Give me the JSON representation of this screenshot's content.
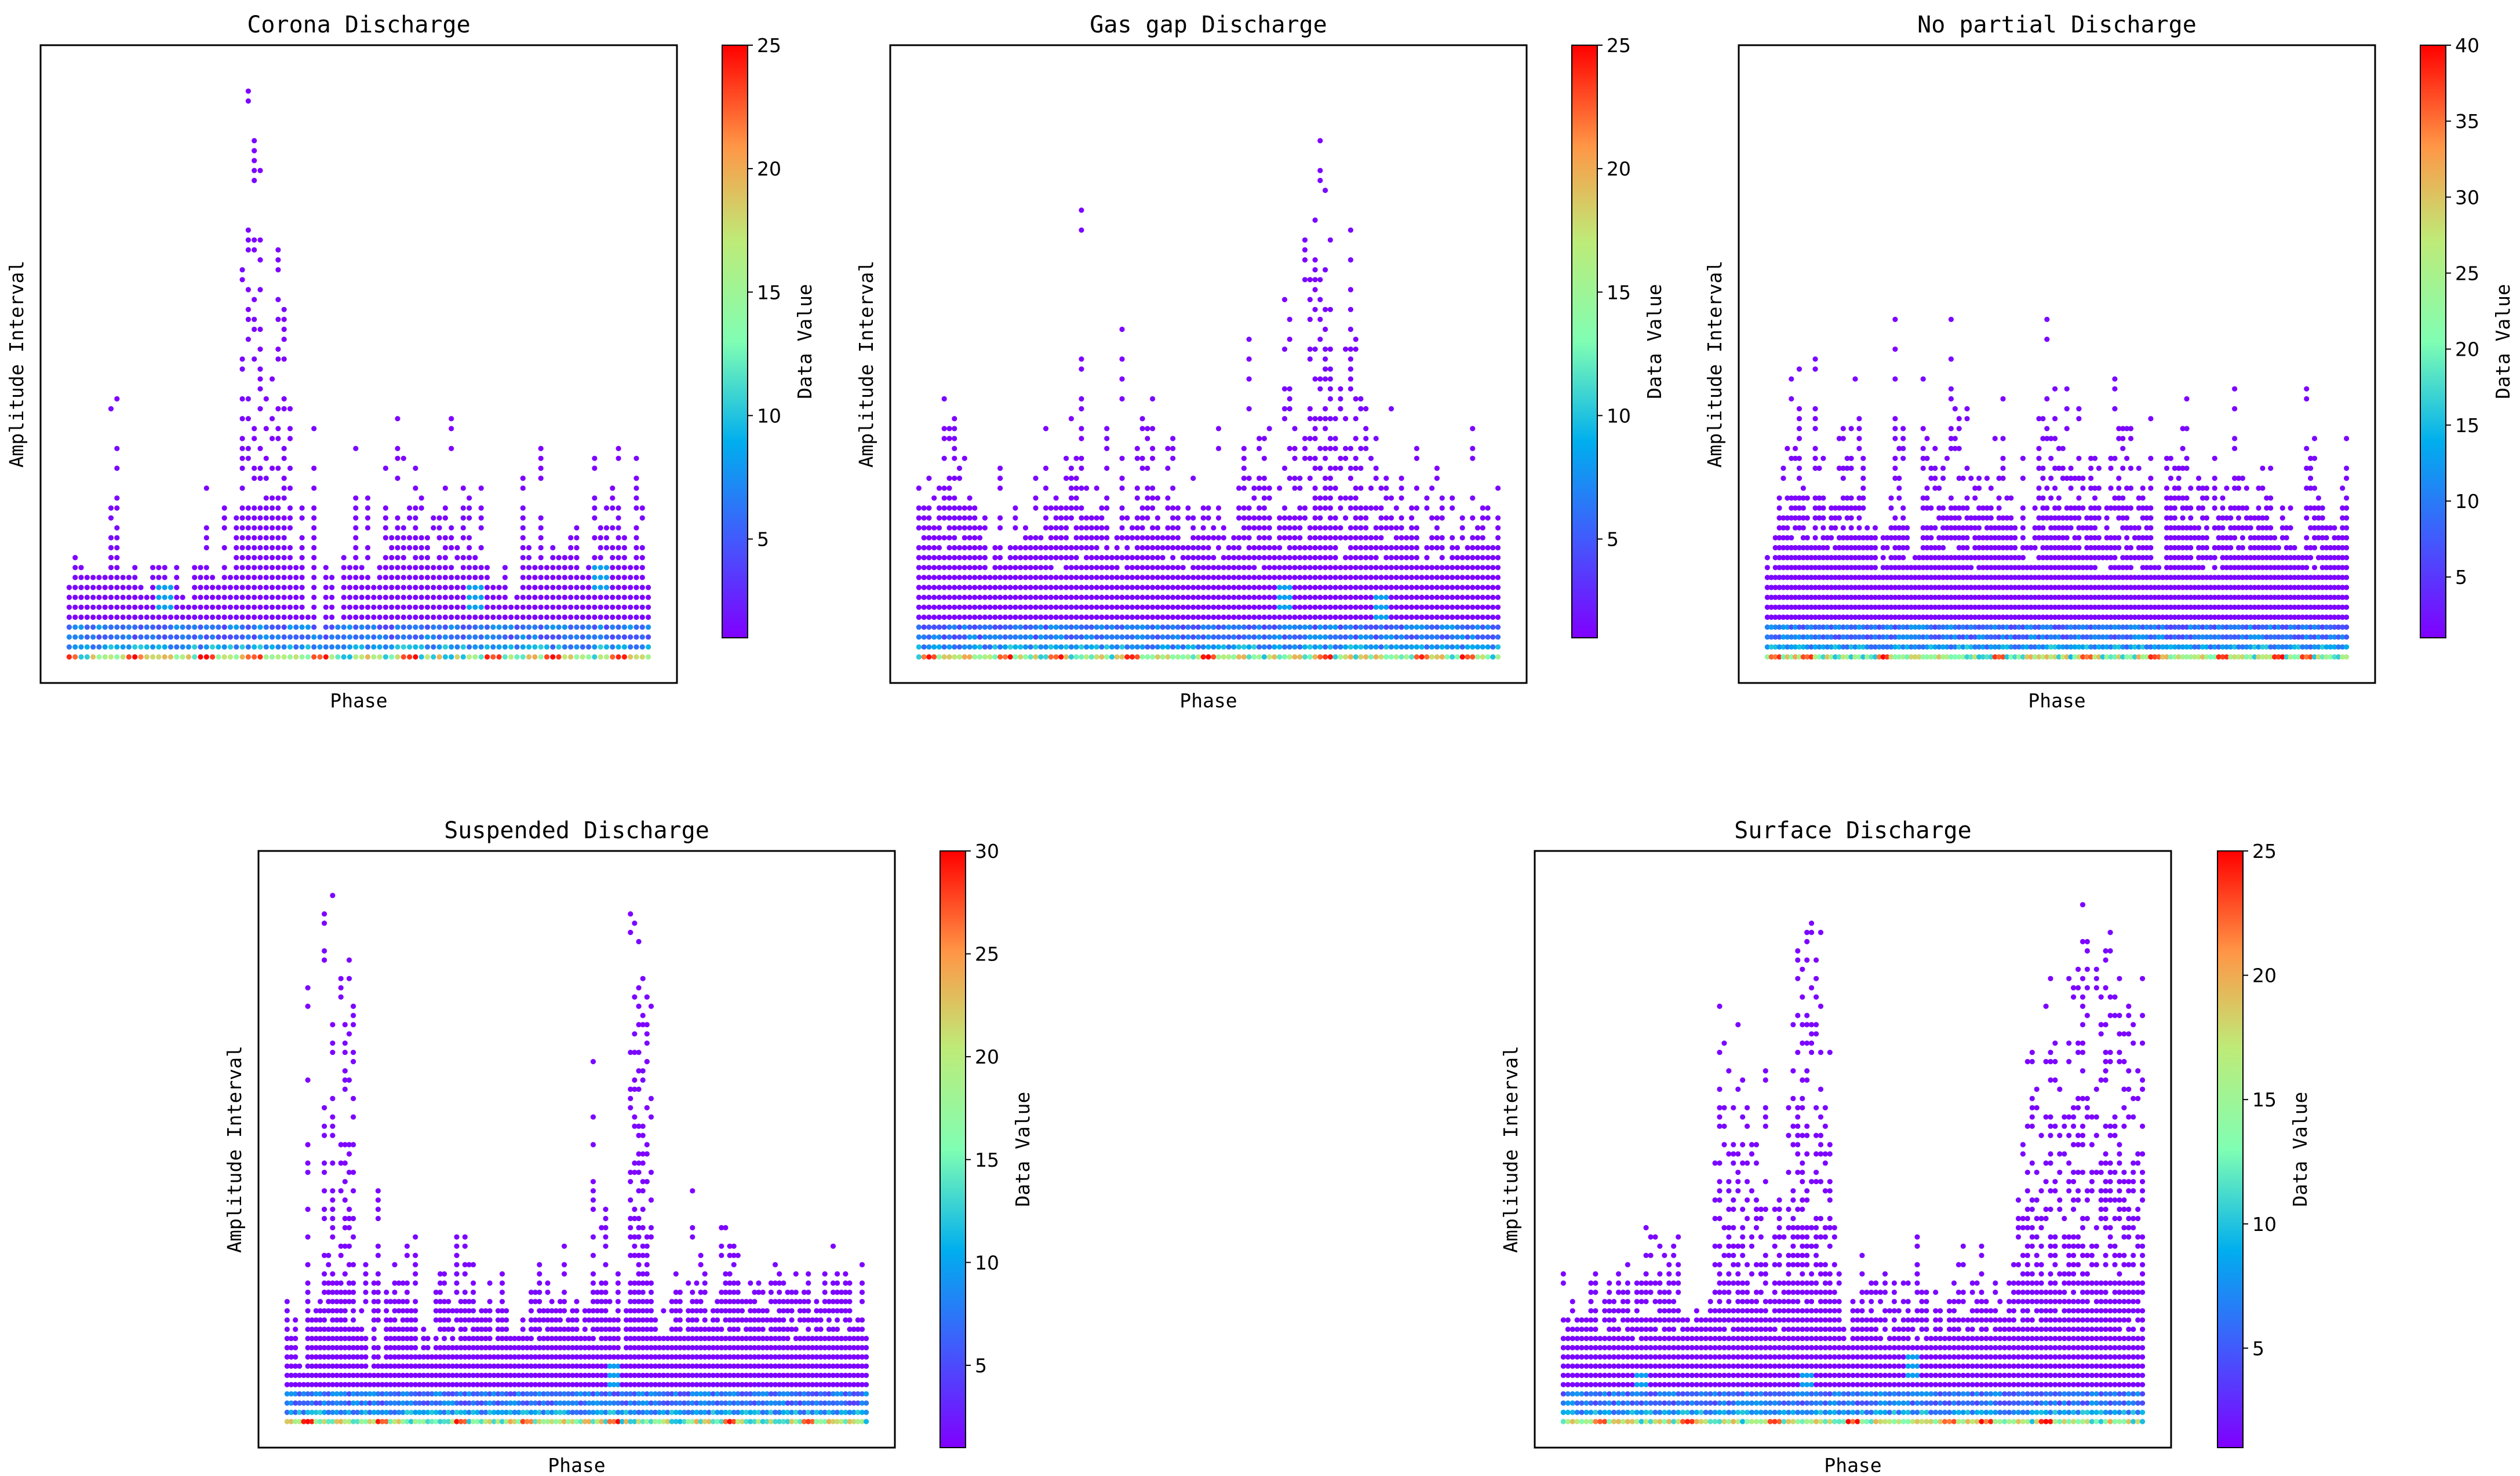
{
  "chart_data": [
    {
      "type": "scatter",
      "title": "Corona Discharge",
      "xlabel": "Phase",
      "ylabel": "Amplitude Interval",
      "colorbar_label": "Data Value",
      "colorbar_ticks": [
        5,
        10,
        15,
        20,
        25
      ],
      "colorbar_range": [
        1,
        25
      ],
      "phase_range": [
        0,
        60
      ],
      "amplitude_range": [
        0,
        60
      ],
      "max_amplitude_by_phase": [
        8,
        11,
        10,
        9,
        9,
        9,
        9,
        27,
        27,
        9,
        9,
        10,
        8,
        7,
        10,
        10,
        10,
        8,
        10,
        7,
        6,
        10,
        10,
        18,
        9,
        8,
        19,
        9,
        15,
        55,
        58,
        57,
        58,
        31,
        33,
        47,
        36,
        37,
        10,
        16,
        5,
        25,
        3,
        10,
        9,
        4,
        11,
        10,
        25,
        10,
        17,
        8,
        10,
        20,
        15,
        28,
        21,
        17,
        20,
        17,
        13,
        15,
        15,
        18,
        25,
        12,
        18,
        22,
        11,
        18,
        10,
        8,
        8,
        10,
        6,
        7,
        21,
        12,
        11,
        23,
        10,
        12,
        11,
        13,
        13,
        14,
        9,
        10,
        21,
        14,
        16,
        18,
        25,
        13,
        10,
        22,
        16,
        8
      ],
      "hotspot_phases": [
        0,
        7,
        14,
        19,
        26,
        35,
        44,
        50,
        57
      ],
      "mid_clusters": [
        {
          "phase": 10,
          "amp": 7
        },
        {
          "phase": 42,
          "amp": 7
        },
        {
          "phase": 55,
          "amp": 9
        }
      ]
    },
    {
      "type": "scatter",
      "title": "Gas gap Discharge",
      "xlabel": "Phase",
      "ylabel": "Amplitude Interval",
      "colorbar_label": "Data Value",
      "colorbar_ticks": [
        5,
        10,
        15,
        20,
        25
      ],
      "colorbar_range": [
        1,
        25
      ],
      "phase_range": [
        0,
        60
      ],
      "amplitude_range": [
        0,
        60
      ],
      "max_amplitude_by_phase": [
        18,
        16,
        20,
        17,
        19,
        28,
        27,
        27,
        21,
        22,
        17,
        16,
        14,
        15,
        9,
        12,
        20,
        10,
        12,
        16,
        12,
        14,
        16,
        20,
        13,
        24,
        17,
        20,
        17,
        25,
        26,
        21,
        48,
        21,
        16,
        18,
        19,
        24,
        11,
        14,
        34,
        16,
        15,
        22,
        25,
        26,
        28,
        19,
        16,
        22,
        24,
        17,
        12,
        16,
        19,
        14,
        18,
        18,
        14,
        24,
        17,
        12,
        13,
        20,
        25,
        35,
        18,
        23,
        23,
        24,
        12,
        18,
        38,
        41,
        31,
        22,
        45,
        40,
        58,
        57,
        48,
        52,
        29,
        29,
        32,
        48,
        36,
        30,
        29,
        21,
        23,
        19,
        20,
        26,
        16,
        20,
        14,
        17,
        22,
        10,
        17,
        19,
        20,
        17,
        10,
        17,
        12,
        18,
        12,
        24,
        14,
        16,
        19,
        12,
        18
      ],
      "hotspot_phases": [
        1,
        9,
        14,
        22,
        30,
        42,
        52,
        57
      ],
      "mid_clusters": [
        {
          "phase": 38,
          "amp": 7
        },
        {
          "phase": 48,
          "amp": 6
        }
      ]
    },
    {
      "type": "scatter",
      "title": "No partial Discharge",
      "xlabel": "Phase",
      "ylabel": "Amplitude Interval",
      "colorbar_label": "Data Value",
      "colorbar_ticks": [
        5,
        10,
        15,
        20,
        25,
        30,
        35,
        40
      ],
      "colorbar_range": [
        1,
        40
      ],
      "phase_range": [
        0,
        60
      ],
      "amplitude_range": [
        0,
        60
      ],
      "max_amplitude_by_phase": [
        11,
        9,
        13,
        17,
        21,
        22,
        29,
        27,
        34,
        18,
        17,
        15,
        35,
        20,
        21,
        14,
        17,
        17,
        23,
        24,
        21,
        24,
        29,
        29,
        21,
        14,
        13,
        14,
        9,
        13,
        14,
        18,
        35,
        24,
        24,
        14,
        10,
        11,
        11,
        29,
        26,
        20,
        23,
        20,
        20,
        22,
        36,
        26,
        25,
        19,
        29,
        20,
        18,
        20,
        19,
        19,
        23,
        23,
        21,
        27,
        20,
        17,
        14,
        11,
        23,
        14,
        12,
        16,
        27,
        27,
        35,
        23,
        28,
        22,
        22,
        28,
        20,
        25,
        26,
        22,
        17,
        21,
        21,
        21,
        12,
        17,
        21,
        29,
        24,
        24,
        24,
        28,
        14,
        21,
        21,
        17,
        26,
        10,
        14,
        9,
        23,
        21,
        20,
        20,
        24,
        27,
        18,
        15,
        19,
        18,
        18,
        11,
        21,
        15,
        17,
        18,
        20,
        28,
        20,
        19,
        18,
        15,
        15,
        21,
        20,
        20,
        22,
        13,
        12,
        17,
        14,
        17,
        13,
        11,
        11,
        29,
        22,
        23,
        21,
        17,
        16,
        15,
        14,
        13,
        18,
        24
      ],
      "hotspot_phases": [
        1,
        4,
        12,
        24,
        33,
        40,
        47,
        53,
        56
      ],
      "mid_clusters": []
    },
    {
      "type": "scatter",
      "title": "Suspended Discharge",
      "xlabel": "Phase",
      "ylabel": "Amplitude Interval",
      "colorbar_label": "Data Value",
      "colorbar_ticks": [
        5,
        10,
        15,
        20,
        25,
        30
      ],
      "colorbar_range": [
        1,
        30
      ],
      "phase_range": [
        0,
        60
      ],
      "amplitude_range": [
        0,
        60
      ],
      "max_amplitude_by_phase": [
        15,
        11,
        12,
        7,
        6,
        48,
        12,
        13,
        14,
        57,
        20,
        58,
        17,
        50,
        50,
        54,
        46,
        11,
        14,
        18,
        6,
        17,
        26,
        7,
        15,
        14,
        18,
        16,
        16,
        20,
        13,
        21,
        8,
        12,
        10,
        8,
        15,
        17,
        17,
        16,
        13,
        21,
        15,
        21,
        19,
        18,
        12,
        15,
        14,
        16,
        9,
        13,
        17,
        13,
        12,
        10,
        10,
        12,
        10,
        17,
        15,
        18,
        13,
        16,
        14,
        13,
        14,
        20,
        12,
        13,
        14,
        10,
        14,
        16,
        48,
        15,
        22,
        25,
        14,
        13,
        17,
        8,
        13,
        58,
        56,
        53,
        52,
        49,
        46,
        12,
        10,
        13,
        10,
        14,
        17,
        15,
        10,
        16,
        27,
        16,
        19,
        19,
        11,
        14,
        14,
        22,
        26,
        20,
        20,
        19,
        15,
        16,
        18,
        15,
        16,
        16,
        13,
        16,
        18,
        17,
        17,
        18,
        15,
        17,
        14,
        15,
        17,
        12,
        14,
        13,
        17,
        14,
        21,
        17,
        15,
        17,
        16,
        11,
        13,
        18,
        10
      ],
      "hotspot_phases": [
        2,
        10,
        18,
        25,
        34,
        46,
        54
      ],
      "mid_clusters": [
        {
          "phase": 34,
          "amp": 6
        }
      ]
    },
    {
      "type": "scatter",
      "title": "Surface Discharge",
      "xlabel": "Phase",
      "ylabel": "Amplitude Interval",
      "colorbar_label": "Data Value",
      "colorbar_ticks": [
        5,
        10,
        15,
        20,
        25
      ],
      "colorbar_range": [
        1,
        25
      ],
      "phase_range": [
        0,
        60
      ],
      "amplitude_range": [
        0,
        60
      ],
      "max_amplitude_by_phase": [
        17,
        13,
        14,
        13,
        12,
        12,
        16,
        17,
        11,
        16,
        18,
        15,
        18,
        15,
        21,
        12,
        16,
        17,
        22,
        21,
        21,
        20,
        19,
        18,
        20,
        21,
        12,
        14,
        11,
        13,
        12,
        17,
        22,
        29,
        47,
        48,
        39,
        44,
        44,
        39,
        35,
        32,
        31,
        25,
        39,
        14,
        28,
        26,
        21,
        41,
        48,
        56,
        52,
        54,
        56,
        58,
        57,
        36,
        42,
        23,
        17,
        11,
        9,
        14,
        13,
        19,
        15,
        18,
        17,
        15,
        17,
        13,
        16,
        13,
        17,
        16,
        12,
        21,
        16,
        15,
        10,
        15,
        13,
        10,
        14,
        16,
        19,
        20,
        12,
        16,
        16,
        20,
        14,
        13,
        16,
        14,
        12,
        19,
        18,
        25,
        31,
        42,
        44,
        45,
        48,
        47,
        50,
        49,
        40,
        48,
        51,
        49,
        52,
        57,
        55,
        43,
        54,
        54,
        56,
        57,
        47,
        49,
        49,
        46,
        44,
        44,
        52
      ],
      "hotspot_phases": [
        4,
        13,
        22,
        30,
        40,
        44,
        50
      ],
      "mid_clusters": [
        {
          "phase": 8,
          "amp": 5
        },
        {
          "phase": 25,
          "amp": 5
        },
        {
          "phase": 36,
          "amp": 7
        }
      ]
    }
  ]
}
